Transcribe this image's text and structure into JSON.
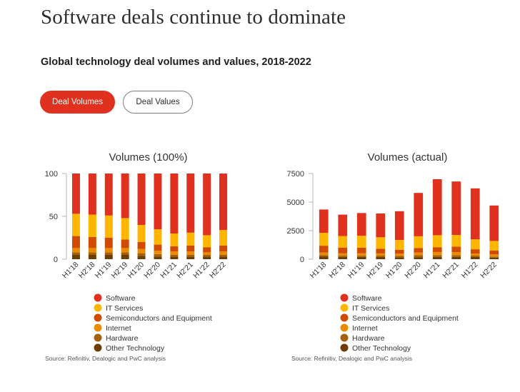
{
  "page": {
    "title": "Software deals continue to dominate",
    "subtitle": "Global technology deal volumes and values, 2018-2022",
    "toggles": [
      {
        "label": "Deal Volumes",
        "active": true
      },
      {
        "label": "Deal Values",
        "active": false
      }
    ]
  },
  "colors": {
    "Software": "#e0301e",
    "IT Services": "#ffb600",
    "Semiconductors and Equipment": "#d04a02",
    "Internet": "#eb8c00",
    "Hardware": "#a3620a",
    "Other Technology": "#6e3d04",
    "axis": "#b5b5b5",
    "text": "#333333"
  },
  "chart_data": [
    {
      "type": "bar",
      "stacked": true,
      "title": "Volumes (100%)",
      "categories": [
        "H1'18",
        "H2'18",
        "H1'19",
        "H2'19",
        "H1'20",
        "H2'20",
        "H1'21",
        "H2'21",
        "H1'22",
        "H2'22"
      ],
      "ylim": [
        0,
        100
      ],
      "yticks": [
        "0",
        "50",
        "100"
      ],
      "series": [
        {
          "name": "Other Technology",
          "values": [
            5,
            5,
            5,
            5,
            4,
            3,
            3,
            3,
            3,
            3
          ]
        },
        {
          "name": "Hardware",
          "values": [
            3,
            3,
            3,
            3,
            3,
            3,
            2,
            2,
            2,
            2
          ]
        },
        {
          "name": "Internet",
          "values": [
            5,
            5,
            5,
            5,
            5,
            4,
            4,
            4,
            3,
            4
          ]
        },
        {
          "name": "Semiconductors and Equipment",
          "values": [
            14,
            13,
            12,
            10,
            8,
            7,
            6,
            7,
            6,
            7
          ]
        },
        {
          "name": "IT Services",
          "values": [
            26,
            26,
            26,
            25,
            20,
            18,
            15,
            15,
            14,
            18
          ]
        },
        {
          "name": "Software",
          "values": [
            47,
            48,
            49,
            52,
            60,
            65,
            70,
            69,
            72,
            66
          ]
        }
      ],
      "legend_position": "bottom-left",
      "source": "Source: Refinitiv, Dealogic and PwC analysis"
    },
    {
      "type": "bar",
      "stacked": true,
      "title": "Volumes (actual)",
      "categories": [
        "H1'18",
        "H2'18",
        "H1'19",
        "H2'19",
        "H1'20",
        "H2'20",
        "H1'21",
        "H2'21",
        "H1'22",
        "H2'22"
      ],
      "ylim": [
        0,
        7500
      ],
      "yticks": [
        "0",
        "2500",
        "5000",
        "7500"
      ],
      "series": [
        {
          "name": "Other Technology",
          "values": [
            220,
            200,
            200,
            190,
            170,
            180,
            210,
            210,
            190,
            140
          ]
        },
        {
          "name": "Hardware",
          "values": [
            140,
            120,
            120,
            120,
            110,
            170,
            140,
            140,
            120,
            90
          ]
        },
        {
          "name": "Internet",
          "values": [
            220,
            190,
            200,
            200,
            210,
            230,
            280,
            270,
            190,
            190
          ]
        },
        {
          "name": "Semiconductors and Equipment",
          "values": [
            600,
            510,
            490,
            400,
            340,
            400,
            420,
            480,
            370,
            330
          ]
        },
        {
          "name": "IT Services",
          "values": [
            1130,
            1010,
            1040,
            1010,
            850,
            1030,
            1050,
            1020,
            870,
            850
          ]
        },
        {
          "name": "Software",
          "values": [
            2040,
            1870,
            1990,
            2080,
            2520,
            3790,
            4900,
            4680,
            4460,
            3100
          ]
        }
      ],
      "legend_position": "bottom-left",
      "source": "Source: Refinitiv, Dealogic and PwC analysis"
    }
  ]
}
